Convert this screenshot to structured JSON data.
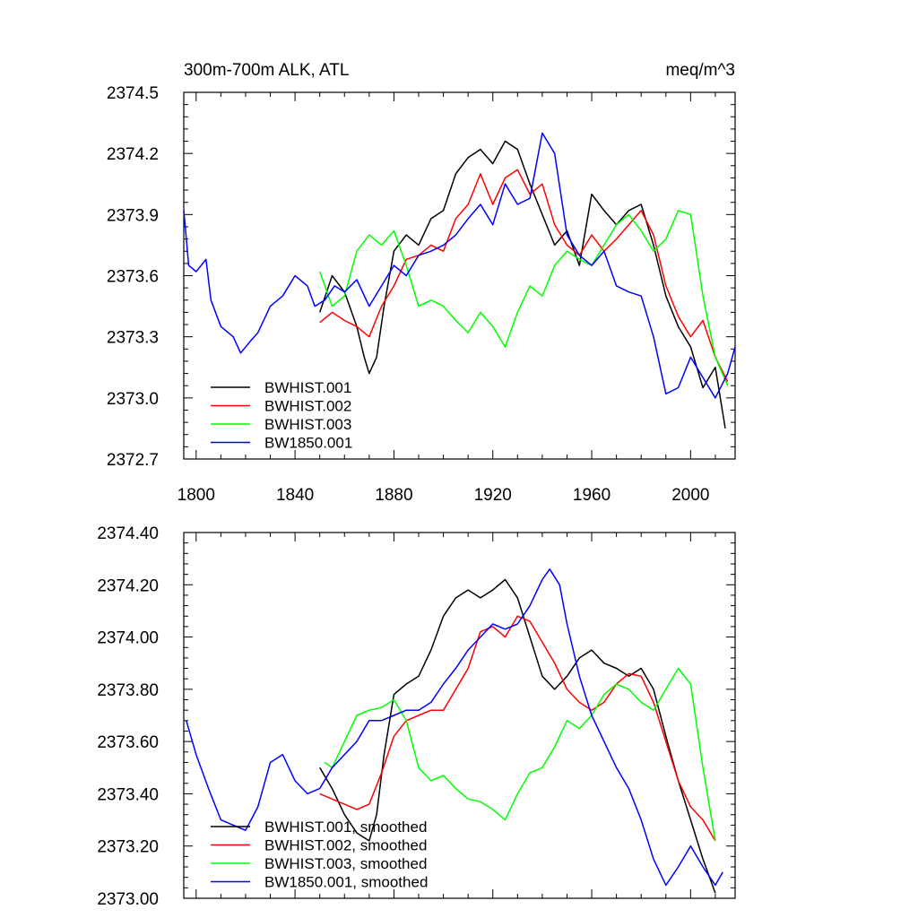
{
  "chart_data": [
    {
      "type": "line",
      "title_left": "300m-700m ALK, ATL",
      "title_right": "meq/m^3",
      "xlabel": "",
      "ylabel": "",
      "xlim": [
        1795,
        2018
      ],
      "ylim": [
        2372.7,
        2374.5
      ],
      "xticks": [
        1800,
        1840,
        1880,
        1920,
        1960,
        2000
      ],
      "xtick_labels": [
        "1800",
        "1840",
        "1880",
        "1920",
        "1960",
        "2000"
      ],
      "yticks": [
        2372.7,
        2373.0,
        2373.3,
        2373.6,
        2373.9,
        2374.2,
        2374.5
      ],
      "ytick_labels": [
        "2372.7",
        "2373.0",
        "2373.3",
        "2373.6",
        "2373.9",
        "2374.2",
        "2374.5"
      ],
      "legend_position": "bottom-left",
      "series": [
        {
          "name": "BWHIST.001",
          "color": "#000000",
          "x": [
            1850,
            1855,
            1860,
            1865,
            1868,
            1870,
            1873,
            1876,
            1880,
            1885,
            1890,
            1895,
            1900,
            1905,
            1910,
            1915,
            1920,
            1925,
            1930,
            1935,
            1940,
            1945,
            1950,
            1955,
            1960,
            1965,
            1970,
            1975,
            1980,
            1985,
            1990,
            1995,
            2000,
            2005,
            2010,
            2014
          ],
          "values": [
            2373.42,
            2373.6,
            2373.52,
            2373.35,
            2373.2,
            2373.12,
            2373.2,
            2373.45,
            2373.72,
            2373.8,
            2373.75,
            2373.88,
            2373.92,
            2374.1,
            2374.18,
            2374.22,
            2374.15,
            2374.26,
            2374.22,
            2374.05,
            2373.9,
            2373.75,
            2373.82,
            2373.65,
            2374.0,
            2373.92,
            2373.85,
            2373.92,
            2373.95,
            2373.75,
            2373.5,
            2373.35,
            2373.25,
            2373.05,
            2373.15,
            2372.85
          ]
        },
        {
          "name": "BWHIST.002",
          "color": "#ff0000",
          "x": [
            1850,
            1855,
            1860,
            1865,
            1870,
            1875,
            1880,
            1885,
            1890,
            1895,
            1900,
            1905,
            1910,
            1915,
            1920,
            1925,
            1930,
            1935,
            1940,
            1945,
            1950,
            1955,
            1960,
            1965,
            1970,
            1975,
            1980,
            1985,
            1990,
            1995,
            2000,
            2005,
            2010,
            2015
          ],
          "values": [
            2373.37,
            2373.42,
            2373.38,
            2373.35,
            2373.3,
            2373.45,
            2373.55,
            2373.68,
            2373.7,
            2373.75,
            2373.72,
            2373.88,
            2373.95,
            2374.1,
            2373.95,
            2374.08,
            2374.12,
            2374.0,
            2374.05,
            2373.85,
            2373.75,
            2373.7,
            2373.8,
            2373.72,
            2373.78,
            2373.85,
            2373.92,
            2373.8,
            2373.55,
            2373.4,
            2373.3,
            2373.38,
            2373.2,
            2373.08
          ]
        },
        {
          "name": "BWHIST.003",
          "color": "#00ff00",
          "x": [
            1850,
            1855,
            1860,
            1865,
            1870,
            1875,
            1880,
            1885,
            1890,
            1895,
            1900,
            1905,
            1910,
            1915,
            1920,
            1925,
            1930,
            1935,
            1940,
            1945,
            1950,
            1955,
            1960,
            1965,
            1970,
            1975,
            1980,
            1985,
            1990,
            1995,
            2000,
            2005,
            2010,
            2015
          ],
          "values": [
            2373.62,
            2373.45,
            2373.5,
            2373.72,
            2373.8,
            2373.75,
            2373.82,
            2373.65,
            2373.45,
            2373.48,
            2373.45,
            2373.38,
            2373.32,
            2373.42,
            2373.35,
            2373.25,
            2373.42,
            2373.55,
            2373.5,
            2373.65,
            2373.72,
            2373.68,
            2373.65,
            2373.75,
            2373.85,
            2373.9,
            2373.82,
            2373.72,
            2373.78,
            2373.92,
            2373.9,
            2373.5,
            2373.2,
            2373.06
          ]
        },
        {
          "name": "BW1850.001",
          "color": "#0000ff",
          "x": [
            1795,
            1797,
            1800,
            1804,
            1806,
            1810,
            1815,
            1818,
            1822,
            1825,
            1830,
            1835,
            1840,
            1845,
            1848,
            1852,
            1856,
            1860,
            1865,
            1870,
            1875,
            1880,
            1885,
            1890,
            1895,
            1900,
            1905,
            1910,
            1915,
            1920,
            1925,
            1930,
            1935,
            1940,
            1945,
            1950,
            1955,
            1960,
            1965,
            1970,
            1975,
            1980,
            1985,
            1990,
            1995,
            2000,
            2005,
            2010,
            2015,
            2018
          ],
          "values": [
            2373.92,
            2373.65,
            2373.62,
            2373.68,
            2373.48,
            2373.35,
            2373.3,
            2373.22,
            2373.28,
            2373.32,
            2373.45,
            2373.5,
            2373.6,
            2373.55,
            2373.45,
            2373.48,
            2373.55,
            2373.52,
            2373.58,
            2373.45,
            2373.55,
            2373.65,
            2373.6,
            2373.7,
            2373.72,
            2373.75,
            2373.8,
            2373.88,
            2373.95,
            2373.85,
            2374.05,
            2373.95,
            2373.98,
            2374.3,
            2374.2,
            2373.8,
            2373.7,
            2373.65,
            2373.72,
            2373.55,
            2373.52,
            2373.5,
            2373.3,
            2373.02,
            2373.05,
            2373.2,
            2373.1,
            2373.0,
            2373.12,
            2373.25
          ]
        }
      ]
    },
    {
      "type": "line",
      "xlabel": "",
      "ylabel": "",
      "xlim": [
        1795,
        2018
      ],
      "ylim": [
        2373.0,
        2374.4
      ],
      "xticks": [
        1800,
        1840,
        1880,
        1920,
        1960,
        2000
      ],
      "yticks": [
        2373.0,
        2373.2,
        2373.4,
        2373.6,
        2373.8,
        2374.0,
        2374.2,
        2374.4
      ],
      "ytick_labels": [
        "2373.00",
        "2373.20",
        "2373.40",
        "2373.60",
        "2373.80",
        "2374.00",
        "2374.20",
        "2374.40"
      ],
      "legend_position": "bottom-left",
      "series": [
        {
          "name": "BWHIST.001, smoothed",
          "color": "#000000",
          "x": [
            1850,
            1855,
            1860,
            1865,
            1870,
            1873,
            1876,
            1880,
            1885,
            1890,
            1895,
            1900,
            1905,
            1910,
            1915,
            1920,
            1925,
            1930,
            1935,
            1940,
            1945,
            1950,
            1955,
            1960,
            1965,
            1970,
            1975,
            1980,
            1985,
            1990,
            1995,
            2000,
            2005,
            2010
          ],
          "values": [
            2373.5,
            2373.42,
            2373.32,
            2373.25,
            2373.22,
            2373.32,
            2373.55,
            2373.78,
            2373.82,
            2373.85,
            2373.95,
            2374.08,
            2374.15,
            2374.18,
            2374.15,
            2374.18,
            2374.22,
            2374.15,
            2374.0,
            2373.85,
            2373.8,
            2373.85,
            2373.92,
            2373.95,
            2373.9,
            2373.88,
            2373.85,
            2373.88,
            2373.8,
            2373.62,
            2373.45,
            2373.3,
            2373.15,
            2373.02
          ]
        },
        {
          "name": "BWHIST.002, smoothed",
          "color": "#ff0000",
          "x": [
            1850,
            1855,
            1860,
            1865,
            1870,
            1875,
            1880,
            1885,
            1890,
            1895,
            1900,
            1905,
            1910,
            1915,
            1920,
            1925,
            1930,
            1935,
            1940,
            1945,
            1950,
            1955,
            1960,
            1965,
            1970,
            1975,
            1980,
            1985,
            1990,
            1995,
            2000,
            2005,
            2010
          ],
          "values": [
            2373.4,
            2373.38,
            2373.36,
            2373.34,
            2373.36,
            2373.48,
            2373.62,
            2373.68,
            2373.7,
            2373.72,
            2373.72,
            2373.8,
            2373.88,
            2374.02,
            2374.04,
            2374.0,
            2374.08,
            2374.06,
            2373.98,
            2373.9,
            2373.8,
            2373.75,
            2373.72,
            2373.75,
            2373.82,
            2373.86,
            2373.85,
            2373.75,
            2373.6,
            2373.45,
            2373.35,
            2373.3,
            2373.22
          ]
        },
        {
          "name": "BWHIST.003, smoothed",
          "color": "#00ff00",
          "x": [
            1852,
            1855,
            1860,
            1865,
            1870,
            1875,
            1880,
            1885,
            1890,
            1895,
            1900,
            1905,
            1910,
            1915,
            1920,
            1925,
            1930,
            1935,
            1940,
            1945,
            1950,
            1955,
            1960,
            1965,
            1970,
            1975,
            1980,
            1985,
            1990,
            1995,
            2000,
            2005,
            2010
          ],
          "values": [
            2373.52,
            2373.5,
            2373.6,
            2373.7,
            2373.72,
            2373.73,
            2373.76,
            2373.68,
            2373.5,
            2373.45,
            2373.47,
            2373.42,
            2373.38,
            2373.37,
            2373.34,
            2373.3,
            2373.4,
            2373.48,
            2373.5,
            2373.58,
            2373.68,
            2373.65,
            2373.7,
            2373.78,
            2373.82,
            2373.8,
            2373.75,
            2373.72,
            2373.8,
            2373.88,
            2373.82,
            2373.5,
            2373.22
          ]
        },
        {
          "name": "BW1850.001, smoothed",
          "color": "#0000ff",
          "x": [
            1796,
            1800,
            1805,
            1810,
            1815,
            1820,
            1825,
            1830,
            1835,
            1840,
            1845,
            1850,
            1855,
            1860,
            1865,
            1870,
            1875,
            1880,
            1885,
            1890,
            1895,
            1900,
            1905,
            1910,
            1915,
            1920,
            1925,
            1930,
            1935,
            1940,
            1943,
            1947,
            1950,
            1955,
            1960,
            1965,
            1970,
            1975,
            1980,
            1985,
            1990,
            1995,
            2000,
            2005,
            2010,
            2013
          ],
          "values": [
            2373.68,
            2373.55,
            2373.42,
            2373.3,
            2373.28,
            2373.26,
            2373.35,
            2373.52,
            2373.55,
            2373.45,
            2373.4,
            2373.42,
            2373.5,
            2373.55,
            2373.6,
            2373.68,
            2373.68,
            2373.7,
            2373.72,
            2373.72,
            2373.75,
            2373.82,
            2373.88,
            2373.95,
            2374.0,
            2374.05,
            2374.03,
            2374.05,
            2374.12,
            2374.22,
            2374.26,
            2374.2,
            2374.05,
            2373.85,
            2373.7,
            2373.6,
            2373.5,
            2373.42,
            2373.3,
            2373.15,
            2373.05,
            2373.12,
            2373.2,
            2373.12,
            2373.05,
            2373.1
          ]
        }
      ]
    }
  ]
}
